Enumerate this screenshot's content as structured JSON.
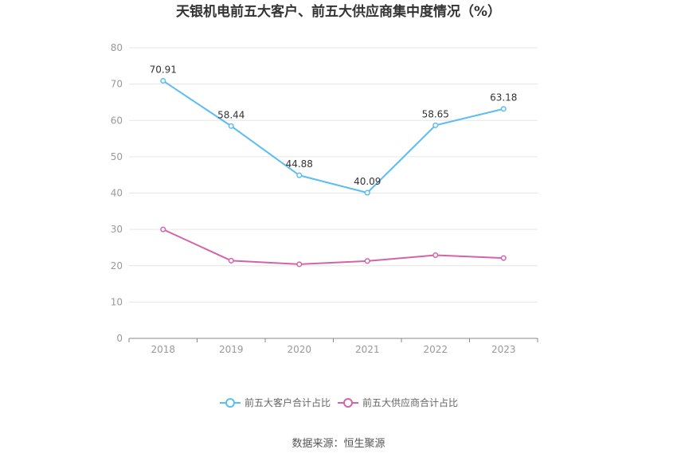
{
  "chart_data": {
    "type": "line",
    "title": "天银机电前五大客户、前五大供应商集中度情况（%）",
    "x": [
      "2018",
      "2019",
      "2020",
      "2021",
      "2022",
      "2023"
    ],
    "ylim": [
      0,
      80
    ],
    "yticks": [
      "0",
      "10",
      "20",
      "30",
      "40",
      "50",
      "60",
      "70",
      "80"
    ],
    "grid": true,
    "legend_position": "bottom",
    "series": [
      {
        "name": "前五大客户合计占比",
        "color": "#5bbdf0",
        "values": [
          70.91,
          58.44,
          44.88,
          40.09,
          58.65,
          63.18
        ],
        "labels": [
          "70.91",
          "58.44",
          "44.88",
          "40.09",
          "58.65",
          "63.18"
        ]
      },
      {
        "name": "前五大供应商合计占比",
        "color": "#d264a8",
        "values": [
          30.0,
          21.4,
          20.4,
          21.3,
          22.9,
          22.1
        ]
      }
    ]
  },
  "footer": {
    "source": "数据来源：恒生聚源"
  }
}
